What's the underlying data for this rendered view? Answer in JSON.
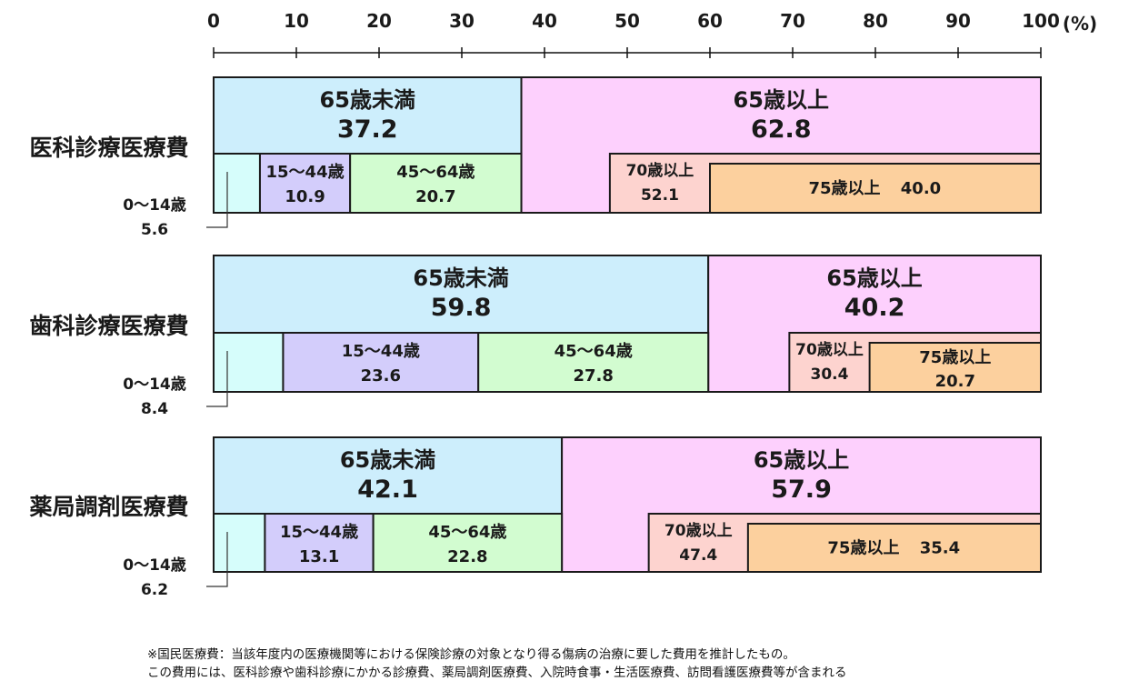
{
  "chart_data": {
    "type": "bar",
    "orientation": "horizontal-stacked",
    "axis": {
      "ticks": [
        "0",
        "10",
        "20",
        "30",
        "40",
        "50",
        "60",
        "70",
        "80",
        "90",
        "100"
      ],
      "unit": "(%)",
      "range": [
        0,
        100
      ]
    },
    "rows": [
      {
        "label": "医科診療医療費",
        "top": [
          {
            "name": "65歳未満",
            "value": "37.2",
            "v": 37.2,
            "color": "#cdeefc"
          },
          {
            "name": "65歳以上",
            "value": "62.8",
            "v": 62.8,
            "color": "#fdd0fd"
          }
        ],
        "bottom": [
          {
            "name": "0〜14歳",
            "value": "5.6",
            "v": 5.6,
            "color": "#d6fdfb",
            "outside": true
          },
          {
            "name": "15〜44歳",
            "value": "10.9",
            "v": 10.9,
            "color": "#d3cdfb"
          },
          {
            "name": "45〜64歳",
            "value": "20.7",
            "v": 20.7,
            "color": "#d2fcd0"
          }
        ],
        "over70": {
          "name": "70歳以上",
          "value": "52.1",
          "v": 52.1,
          "color": "#fdd3cf"
        },
        "over75": {
          "name": "75歳以上",
          "value": "40.0",
          "v": 40.0,
          "color": "#fcd09e",
          "inline": true
        }
      },
      {
        "label": "歯科診療医療費",
        "top": [
          {
            "name": "65歳未満",
            "value": "59.8",
            "v": 59.8,
            "color": "#cdeefc"
          },
          {
            "name": "65歳以上",
            "value": "40.2",
            "v": 40.2,
            "color": "#fdd0fd"
          }
        ],
        "bottom": [
          {
            "name": "0〜14歳",
            "value": "8.4",
            "v": 8.4,
            "color": "#d6fdfb",
            "outside": true
          },
          {
            "name": "15〜44歳",
            "value": "23.6",
            "v": 23.6,
            "color": "#d3cdfb"
          },
          {
            "name": "45〜64歳",
            "value": "27.8",
            "v": 27.8,
            "color": "#d2fcd0"
          }
        ],
        "over70": {
          "name": "70歳以上",
          "value": "30.4",
          "v": 30.4,
          "color": "#fdd3cf"
        },
        "over75": {
          "name": "75歳以上",
          "value": "20.7",
          "v": 20.7,
          "color": "#fcd09e",
          "inline": false
        }
      },
      {
        "label": "薬局調剤医療費",
        "top": [
          {
            "name": "65歳未満",
            "value": "42.1",
            "v": 42.1,
            "color": "#cdeefc"
          },
          {
            "name": "65歳以上",
            "value": "57.9",
            "v": 57.9,
            "color": "#fdd0fd"
          }
        ],
        "bottom": [
          {
            "name": "0〜14歳",
            "value": "6.2",
            "v": 6.2,
            "color": "#d6fdfb",
            "outside": true
          },
          {
            "name": "15〜44歳",
            "value": "13.1",
            "v": 13.1,
            "color": "#d3cdfb"
          },
          {
            "name": "45〜64歳",
            "value": "22.8",
            "v": 22.8,
            "color": "#d2fcd0"
          }
        ],
        "over70": {
          "name": "70歳以上",
          "value": "47.4",
          "v": 47.4,
          "color": "#fdd3cf"
        },
        "over75": {
          "name": "75歳以上",
          "value": "35.4",
          "v": 35.4,
          "color": "#fcd09e",
          "inline": true
        }
      }
    ]
  },
  "footnote": {
    "line1": "※国民医療費：当該年度内の医療機関等における保険診療の対象となり得る傷病の治療に要した費用を推計したもの。",
    "line2": "この費用には、医科診療や歯科診療にかかる診療費、薬局調剤医療費、入院時食事・生活医療費、訪問看護医療費等が含まれる"
  }
}
